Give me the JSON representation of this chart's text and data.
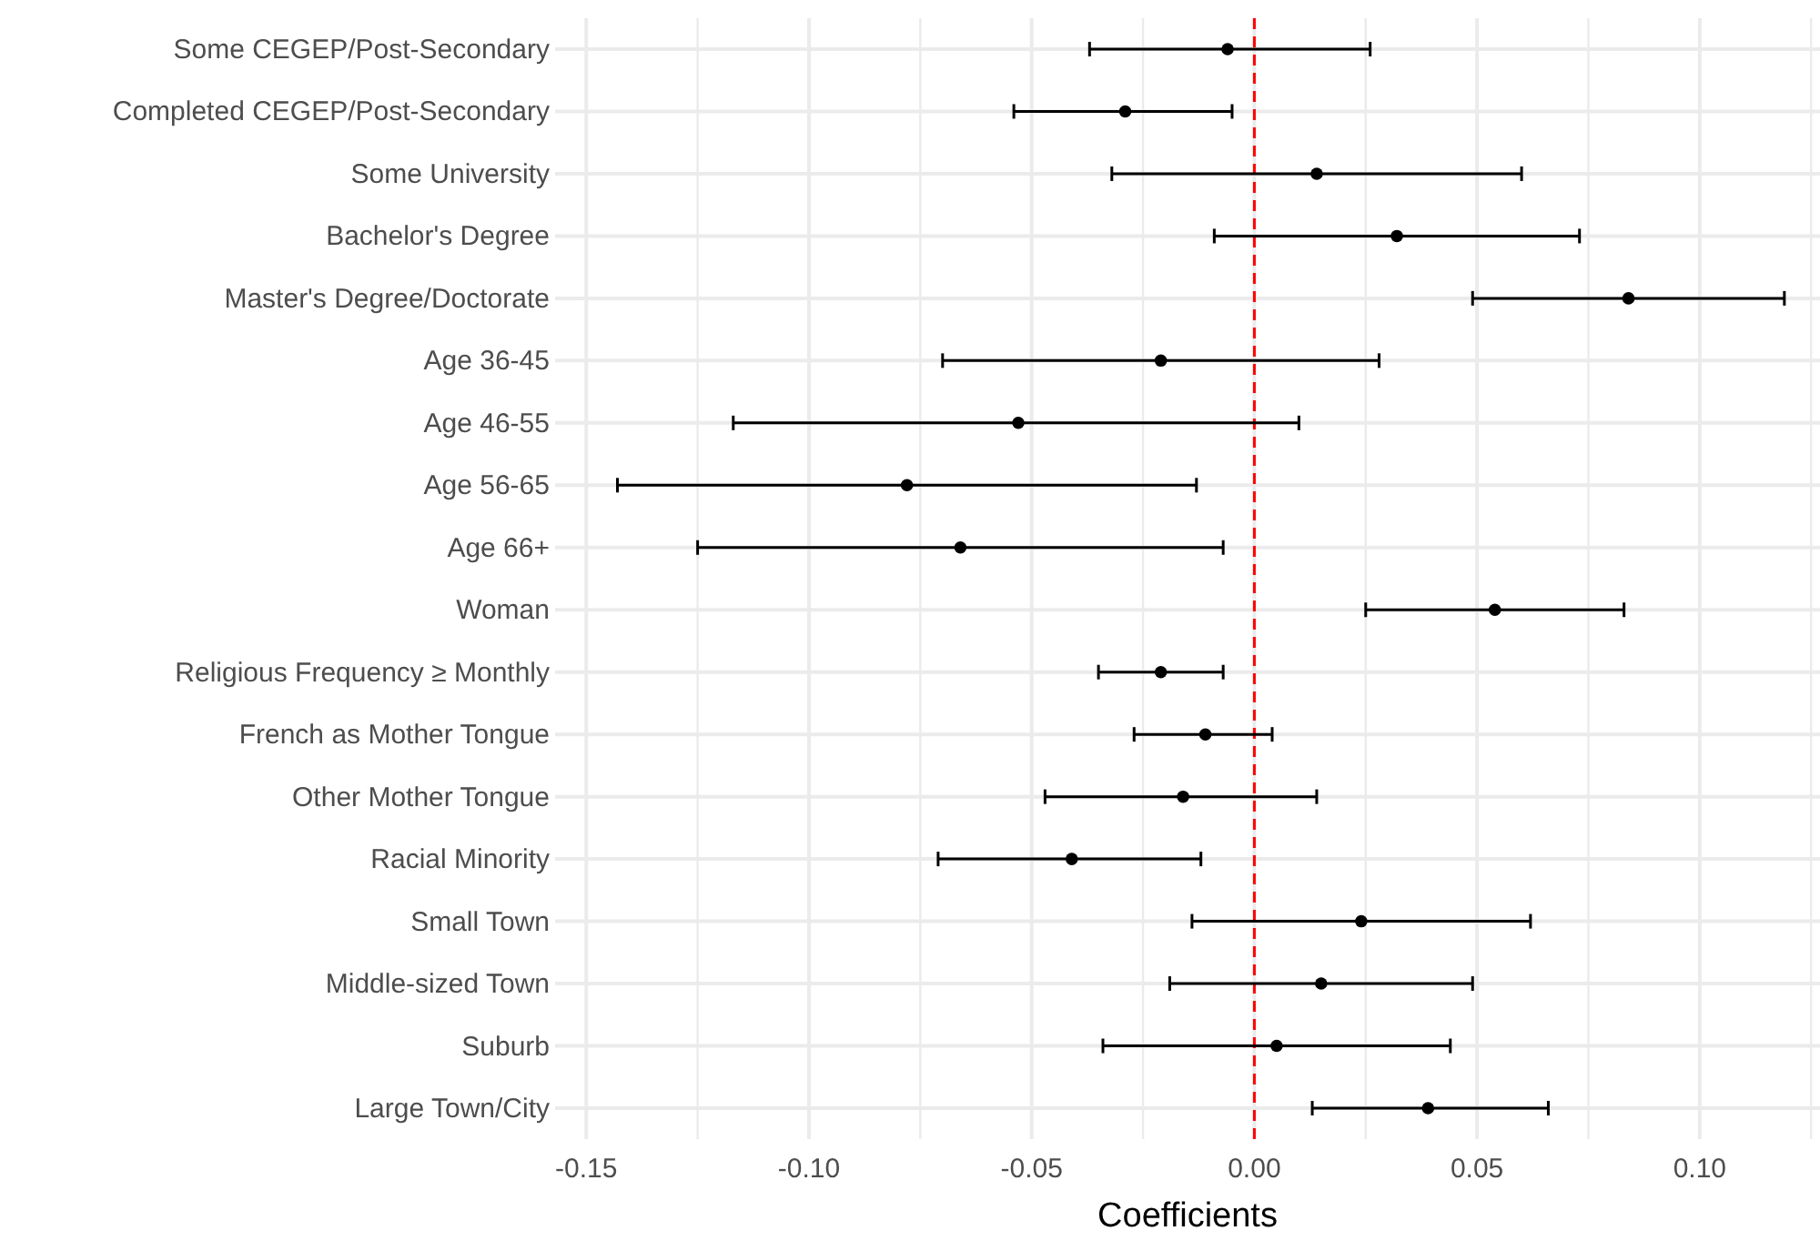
{
  "chart_data": {
    "type": "scatter",
    "orientation": "horizontal",
    "xlabel": "Coefficients",
    "categories": [
      "Some CEGEP/Post-Secondary",
      "Completed CEGEP/Post-Secondary",
      "Some University",
      "Bachelor's Degree",
      "Master's Degree/Doctorate",
      "Age 36-45",
      "Age 46-55",
      "Age 56-65",
      "Age 66+",
      "Woman",
      "Religious Frequency ≥ Monthly",
      "French as Mother Tongue",
      "Other Mother Tongue",
      "Racial Minority",
      "Small Town",
      "Middle-sized Town",
      "Suburb",
      "Large Town/City"
    ],
    "values": [
      -0.006,
      -0.029,
      0.014,
      0.032,
      0.084,
      -0.021,
      -0.053,
      -0.078,
      -0.066,
      0.054,
      -0.021,
      -0.011,
      -0.016,
      -0.041,
      0.024,
      0.015,
      0.005,
      0.039
    ],
    "errors": [
      [
        -0.037,
        0.026
      ],
      [
        -0.054,
        -0.005
      ],
      [
        -0.032,
        0.06
      ],
      [
        -0.009,
        0.073
      ],
      [
        0.049,
        0.119
      ],
      [
        -0.07,
        0.028
      ],
      [
        -0.117,
        0.01
      ],
      [
        -0.143,
        -0.013
      ],
      [
        -0.125,
        -0.007
      ],
      [
        0.025,
        0.083
      ],
      [
        -0.035,
        -0.007
      ],
      [
        -0.027,
        0.004
      ],
      [
        -0.047,
        0.014
      ],
      [
        -0.071,
        -0.012
      ],
      [
        -0.014,
        0.062
      ],
      [
        -0.019,
        0.049
      ],
      [
        -0.034,
        0.044
      ],
      [
        0.013,
        0.066
      ]
    ],
    "color": "#000000",
    "marker": "circle",
    "xlim": [
      -0.157,
      0.127
    ],
    "xticks": [
      {
        "value": -0.15,
        "label": "-0.15"
      },
      {
        "value": -0.125,
        "label": null
      },
      {
        "value": -0.1,
        "label": "-0.10"
      },
      {
        "value": -0.075,
        "label": null
      },
      {
        "value": -0.05,
        "label": "-0.05"
      },
      {
        "value": -0.025,
        "label": null
      },
      {
        "value": 0,
        "label": "0.00"
      },
      {
        "value": 0.025,
        "label": null
      },
      {
        "value": 0.05,
        "label": "0.05"
      },
      {
        "value": 0.075,
        "label": null
      },
      {
        "value": 0.1,
        "label": "0.10"
      },
      {
        "value": 0.125,
        "label": null
      }
    ],
    "ref_lines": [
      {
        "axis": "x",
        "value": 0,
        "color": "#ff0000",
        "line_style": "dashed"
      }
    ],
    "grid": true
  }
}
